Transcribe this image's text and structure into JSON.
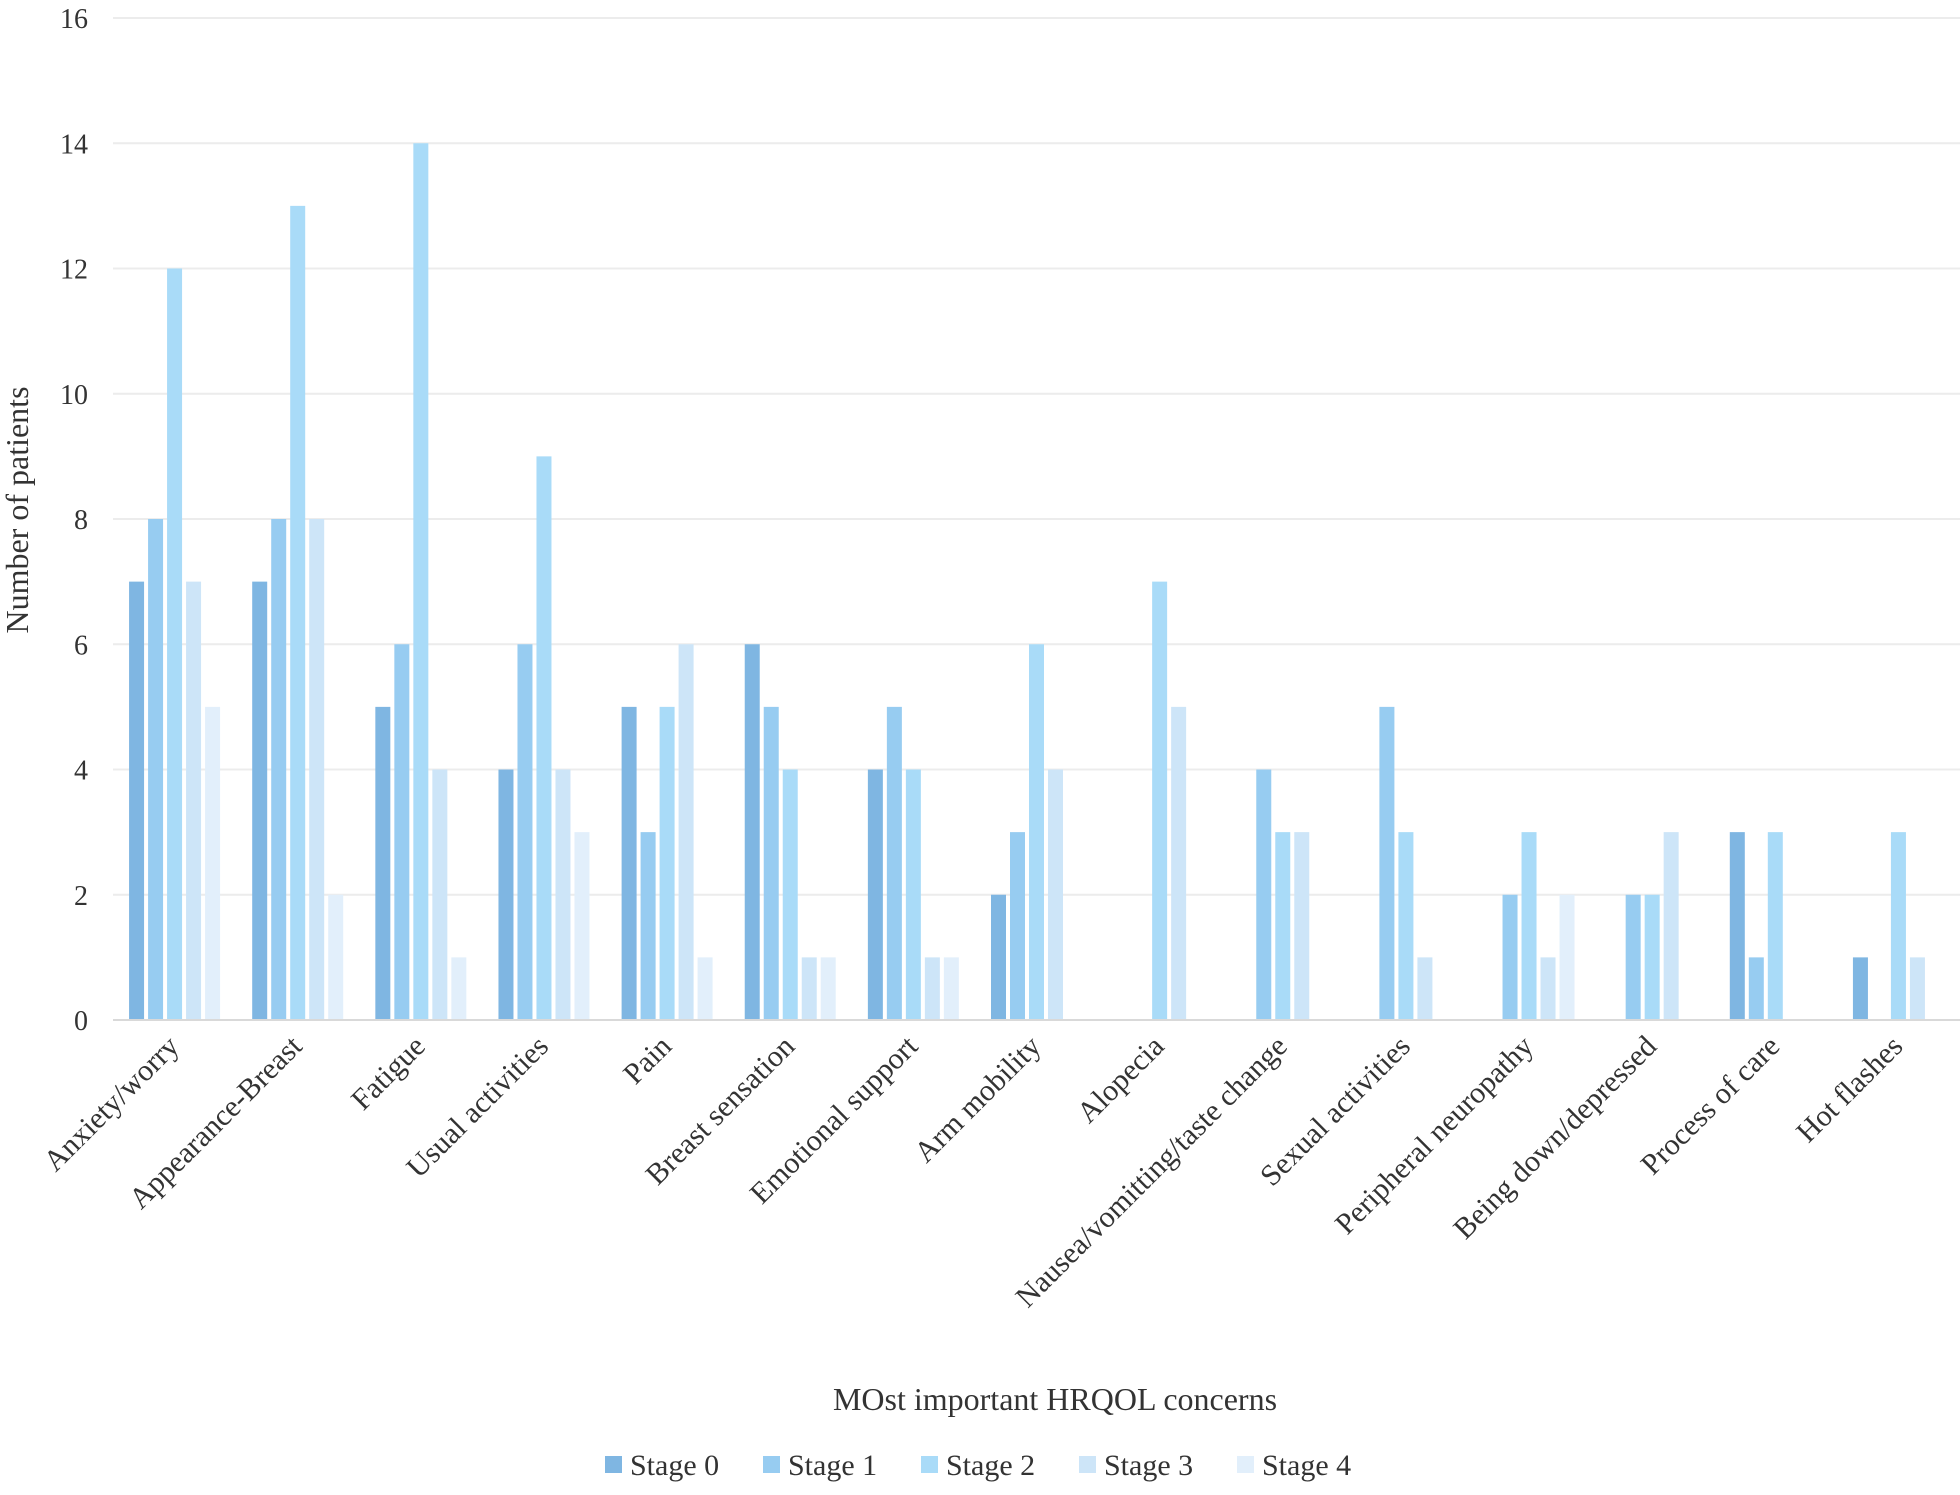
{
  "chart_data": {
    "type": "bar",
    "title": "",
    "xlabel": "MOst important HRQOL concerns",
    "ylabel": "Number of patients",
    "ylim": [
      0,
      16
    ],
    "yticks": [
      0,
      2,
      4,
      6,
      8,
      10,
      12,
      14,
      16
    ],
    "grid": true,
    "legend_position": "bottom",
    "categories": [
      "Anxiety/worry",
      "Appearance-Breast",
      "Fatigue",
      "Usual activities",
      "Pain",
      "Breast sensation",
      "Emotional support",
      "Arm mobility",
      "Alopecia",
      "Nausea/vomitting/taste change",
      "Sexual activities",
      "Peripheral neuropathy",
      "Being down/depressed",
      "Process of care",
      "Hot flashes"
    ],
    "series": [
      {
        "name": "Stage 0",
        "color": "#7fb6e2",
        "values": [
          7,
          7,
          5,
          4,
          5,
          6,
          4,
          2,
          0,
          0,
          0,
          0,
          0,
          3,
          1
        ]
      },
      {
        "name": "Stage 1",
        "color": "#97ccf1",
        "values": [
          8,
          8,
          6,
          6,
          3,
          5,
          5,
          3,
          0,
          4,
          5,
          2,
          2,
          1,
          0
        ]
      },
      {
        "name": "Stage 2",
        "color": "#a9dbf8",
        "values": [
          12,
          13,
          14,
          9,
          5,
          4,
          4,
          6,
          7,
          3,
          3,
          3,
          2,
          3,
          3
        ]
      },
      {
        "name": "Stage 3",
        "color": "#cde5f8",
        "values": [
          7,
          8,
          4,
          4,
          6,
          1,
          1,
          4,
          5,
          3,
          1,
          1,
          3,
          0,
          1
        ]
      },
      {
        "name": "Stage 4",
        "color": "#e2effb",
        "values": [
          5,
          2,
          1,
          3,
          1,
          1,
          1,
          0,
          0,
          0,
          0,
          2,
          0,
          0,
          0
        ]
      }
    ]
  }
}
